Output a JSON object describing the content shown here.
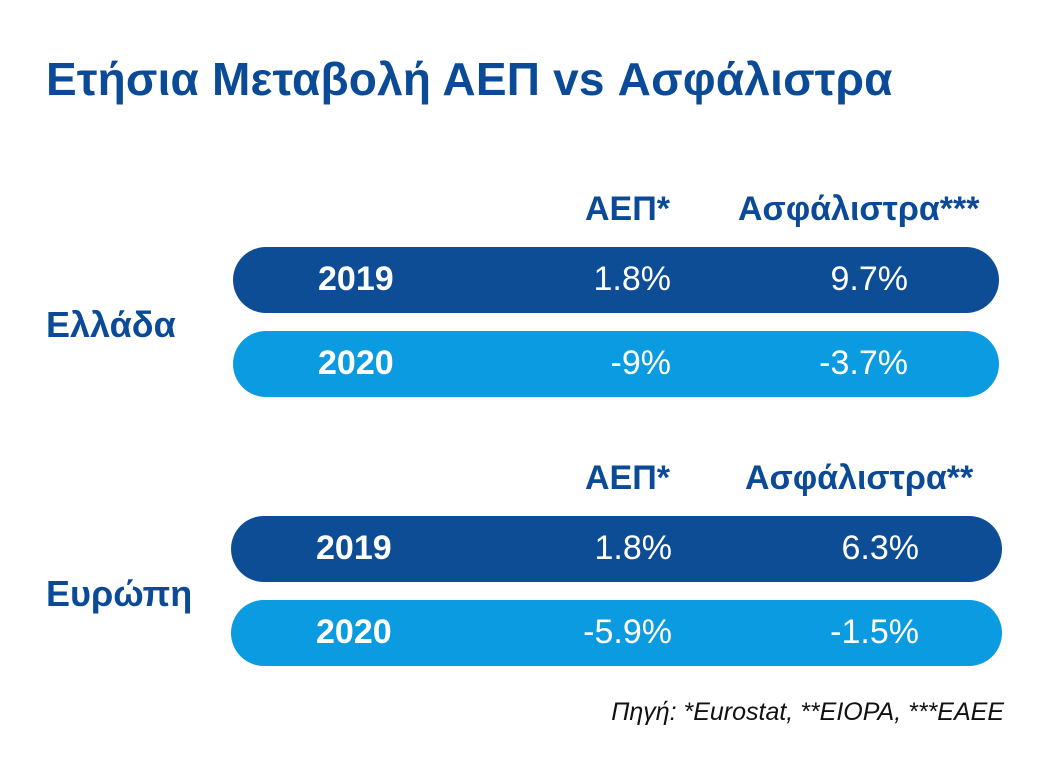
{
  "title": "Ετήσια Μεταβολή ΑΕΠ vs Ασφάλιστρα",
  "sections": [
    {
      "region": "Ελλάδα",
      "headers": {
        "gdp": "ΑΕΠ*",
        "premiums": "Ασφάλιστρα***"
      },
      "rows": [
        {
          "year": "2019",
          "gdp": "1.8%",
          "premiums": "9.7%"
        },
        {
          "year": "2020",
          "gdp": "-9%",
          "premiums": "-3.7%"
        }
      ]
    },
    {
      "region": "Ευρώπη",
      "headers": {
        "gdp": "ΑΕΠ*",
        "premiums": "Ασφάλιστρα**"
      },
      "rows": [
        {
          "year": "2019",
          "gdp": "1.8%",
          "premiums": "6.3%"
        },
        {
          "year": "2020",
          "gdp": "-5.9%",
          "premiums": "-1.5%"
        }
      ]
    }
  ],
  "source": "Πηγή: *Eurostat, **EIOPA, ***ΕΑΕΕ",
  "colors": {
    "title": "#0a4a97",
    "row_2019": "#0c4d96",
    "row_2020": "#0a9be0",
    "row_text": "#ffffff"
  }
}
